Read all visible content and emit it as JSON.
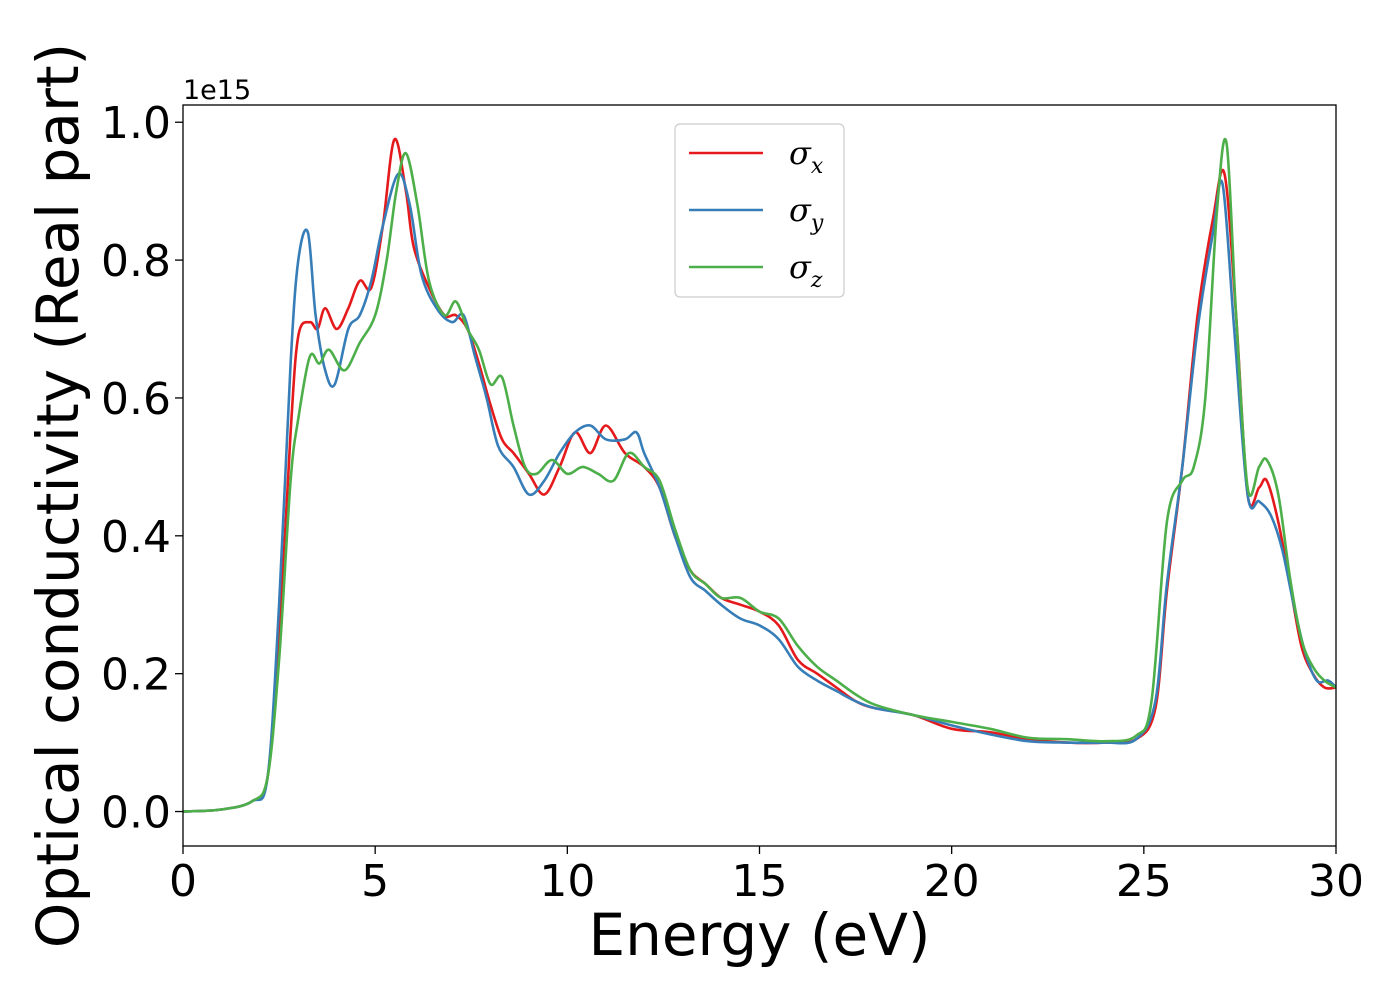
{
  "chart_data": {
    "type": "line",
    "xlabel": "Energy (eV)",
    "ylabel": "Optical conductivity (Real part)",
    "y_offset_label": "1e15",
    "xlim": [
      0,
      30
    ],
    "ylim": [
      -0.05,
      1.025
    ],
    "xticks": [
      0,
      5,
      10,
      15,
      20,
      25,
      30
    ],
    "xtick_labels": [
      "0",
      "5",
      "10",
      "15",
      "20",
      "25",
      "30"
    ],
    "yticks": [
      0.0,
      0.2,
      0.4,
      0.6,
      0.8,
      1.0
    ],
    "ytick_labels": [
      "0.0",
      "0.2",
      "0.4",
      "0.6",
      "0.8",
      "1.0"
    ],
    "grid": false,
    "legend_position": "top-center",
    "series": [
      {
        "name": "σx",
        "symbol": "σ",
        "subscript": "x",
        "color": "#e41a1c",
        "points": [
          [
            0,
            0.0
          ],
          [
            1.0,
            0.003
          ],
          [
            1.8,
            0.015
          ],
          [
            2.2,
            0.05
          ],
          [
            2.5,
            0.25
          ],
          [
            2.8,
            0.55
          ],
          [
            3.0,
            0.69
          ],
          [
            3.3,
            0.71
          ],
          [
            3.5,
            0.7
          ],
          [
            3.7,
            0.73
          ],
          [
            4.0,
            0.7
          ],
          [
            4.3,
            0.73
          ],
          [
            4.6,
            0.77
          ],
          [
            4.9,
            0.76
          ],
          [
            5.2,
            0.85
          ],
          [
            5.5,
            0.975
          ],
          [
            5.8,
            0.9
          ],
          [
            6.0,
            0.82
          ],
          [
            6.4,
            0.76
          ],
          [
            6.8,
            0.72
          ],
          [
            7.1,
            0.72
          ],
          [
            7.4,
            0.7
          ],
          [
            7.7,
            0.65
          ],
          [
            8.0,
            0.59
          ],
          [
            8.3,
            0.54
          ],
          [
            8.6,
            0.52
          ],
          [
            9.0,
            0.49
          ],
          [
            9.4,
            0.46
          ],
          [
            9.8,
            0.5
          ],
          [
            10.2,
            0.55
          ],
          [
            10.6,
            0.52
          ],
          [
            11.0,
            0.56
          ],
          [
            11.5,
            0.52
          ],
          [
            12.0,
            0.5
          ],
          [
            12.4,
            0.47
          ],
          [
            12.8,
            0.4
          ],
          [
            13.2,
            0.35
          ],
          [
            13.6,
            0.33
          ],
          [
            14.0,
            0.31
          ],
          [
            14.5,
            0.3
          ],
          [
            15.0,
            0.29
          ],
          [
            15.5,
            0.27
          ],
          [
            16.0,
            0.22
          ],
          [
            16.5,
            0.2
          ],
          [
            17.0,
            0.18
          ],
          [
            17.5,
            0.16
          ],
          [
            18.0,
            0.15
          ],
          [
            19.0,
            0.14
          ],
          [
            20.0,
            0.12
          ],
          [
            21.0,
            0.115
          ],
          [
            22.0,
            0.105
          ],
          [
            23.0,
            0.1
          ],
          [
            24.0,
            0.1
          ],
          [
            24.8,
            0.105
          ],
          [
            25.3,
            0.15
          ],
          [
            25.6,
            0.32
          ],
          [
            26.0,
            0.5
          ],
          [
            26.4,
            0.72
          ],
          [
            26.8,
            0.86
          ],
          [
            27.1,
            0.925
          ],
          [
            27.4,
            0.72
          ],
          [
            27.7,
            0.46
          ],
          [
            28.0,
            0.47
          ],
          [
            28.2,
            0.48
          ],
          [
            28.5,
            0.42
          ],
          [
            28.8,
            0.33
          ],
          [
            29.1,
            0.24
          ],
          [
            29.4,
            0.2
          ],
          [
            29.7,
            0.18
          ],
          [
            30.0,
            0.18
          ]
        ]
      },
      {
        "name": "σy",
        "symbol": "σ",
        "subscript": "y",
        "color": "#377eb8",
        "points": [
          [
            0,
            0.0
          ],
          [
            1.0,
            0.003
          ],
          [
            1.8,
            0.015
          ],
          [
            2.2,
            0.05
          ],
          [
            2.5,
            0.3
          ],
          [
            2.8,
            0.65
          ],
          [
            3.0,
            0.8
          ],
          [
            3.25,
            0.84
          ],
          [
            3.45,
            0.72
          ],
          [
            3.7,
            0.64
          ],
          [
            3.95,
            0.62
          ],
          [
            4.3,
            0.7
          ],
          [
            4.6,
            0.72
          ],
          [
            4.9,
            0.77
          ],
          [
            5.2,
            0.85
          ],
          [
            5.6,
            0.925
          ],
          [
            5.9,
            0.88
          ],
          [
            6.2,
            0.78
          ],
          [
            6.6,
            0.73
          ],
          [
            7.0,
            0.71
          ],
          [
            7.3,
            0.72
          ],
          [
            7.6,
            0.66
          ],
          [
            7.9,
            0.6
          ],
          [
            8.2,
            0.53
          ],
          [
            8.6,
            0.5
          ],
          [
            9.0,
            0.46
          ],
          [
            9.4,
            0.48
          ],
          [
            9.8,
            0.52
          ],
          [
            10.2,
            0.55
          ],
          [
            10.6,
            0.56
          ],
          [
            11.0,
            0.54
          ],
          [
            11.5,
            0.54
          ],
          [
            11.8,
            0.55
          ],
          [
            12.0,
            0.52
          ],
          [
            12.4,
            0.47
          ],
          [
            12.8,
            0.4
          ],
          [
            13.2,
            0.34
          ],
          [
            13.6,
            0.32
          ],
          [
            14.0,
            0.3
          ],
          [
            14.5,
            0.28
          ],
          [
            15.0,
            0.27
          ],
          [
            15.5,
            0.25
          ],
          [
            16.0,
            0.21
          ],
          [
            16.5,
            0.19
          ],
          [
            17.0,
            0.175
          ],
          [
            17.5,
            0.16
          ],
          [
            18.0,
            0.15
          ],
          [
            19.0,
            0.14
          ],
          [
            20.0,
            0.125
          ],
          [
            21.0,
            0.112
          ],
          [
            22.0,
            0.102
          ],
          [
            23.0,
            0.1
          ],
          [
            24.0,
            0.1
          ],
          [
            24.8,
            0.105
          ],
          [
            25.3,
            0.16
          ],
          [
            25.6,
            0.33
          ],
          [
            26.0,
            0.5
          ],
          [
            26.4,
            0.7
          ],
          [
            26.8,
            0.84
          ],
          [
            27.05,
            0.91
          ],
          [
            27.35,
            0.7
          ],
          [
            27.7,
            0.46
          ],
          [
            28.0,
            0.45
          ],
          [
            28.3,
            0.43
          ],
          [
            28.6,
            0.38
          ],
          [
            28.9,
            0.3
          ],
          [
            29.2,
            0.23
          ],
          [
            29.5,
            0.19
          ],
          [
            29.8,
            0.19
          ],
          [
            30.0,
            0.18
          ]
        ]
      },
      {
        "name": "σz",
        "symbol": "σ",
        "subscript": "z",
        "color": "#4daf4a",
        "points": [
          [
            0,
            0.0
          ],
          [
            1.0,
            0.003
          ],
          [
            1.8,
            0.015
          ],
          [
            2.2,
            0.05
          ],
          [
            2.5,
            0.22
          ],
          [
            2.8,
            0.48
          ],
          [
            3.0,
            0.57
          ],
          [
            3.3,
            0.66
          ],
          [
            3.55,
            0.65
          ],
          [
            3.8,
            0.67
          ],
          [
            4.2,
            0.64
          ],
          [
            4.6,
            0.68
          ],
          [
            5.0,
            0.72
          ],
          [
            5.3,
            0.8
          ],
          [
            5.55,
            0.9
          ],
          [
            5.8,
            0.955
          ],
          [
            6.1,
            0.88
          ],
          [
            6.4,
            0.77
          ],
          [
            6.8,
            0.72
          ],
          [
            7.1,
            0.74
          ],
          [
            7.4,
            0.7
          ],
          [
            7.7,
            0.67
          ],
          [
            8.0,
            0.62
          ],
          [
            8.3,
            0.63
          ],
          [
            8.6,
            0.56
          ],
          [
            8.9,
            0.5
          ],
          [
            9.2,
            0.49
          ],
          [
            9.6,
            0.51
          ],
          [
            10.0,
            0.49
          ],
          [
            10.4,
            0.5
          ],
          [
            10.8,
            0.49
          ],
          [
            11.2,
            0.48
          ],
          [
            11.6,
            0.52
          ],
          [
            12.0,
            0.5
          ],
          [
            12.4,
            0.48
          ],
          [
            12.8,
            0.41
          ],
          [
            13.2,
            0.35
          ],
          [
            13.6,
            0.33
          ],
          [
            14.0,
            0.31
          ],
          [
            14.5,
            0.31
          ],
          [
            15.0,
            0.29
          ],
          [
            15.5,
            0.28
          ],
          [
            16.0,
            0.24
          ],
          [
            16.5,
            0.21
          ],
          [
            17.0,
            0.19
          ],
          [
            17.5,
            0.17
          ],
          [
            18.0,
            0.155
          ],
          [
            19.0,
            0.14
          ],
          [
            20.0,
            0.13
          ],
          [
            21.0,
            0.12
          ],
          [
            22.0,
            0.107
          ],
          [
            23.0,
            0.105
          ],
          [
            24.0,
            0.102
          ],
          [
            24.8,
            0.11
          ],
          [
            25.2,
            0.16
          ],
          [
            25.6,
            0.42
          ],
          [
            26.0,
            0.48
          ],
          [
            26.3,
            0.5
          ],
          [
            26.6,
            0.6
          ],
          [
            26.9,
            0.87
          ],
          [
            27.15,
            0.97
          ],
          [
            27.4,
            0.72
          ],
          [
            27.7,
            0.47
          ],
          [
            28.0,
            0.5
          ],
          [
            28.2,
            0.51
          ],
          [
            28.5,
            0.46
          ],
          [
            28.8,
            0.34
          ],
          [
            29.1,
            0.25
          ],
          [
            29.4,
            0.21
          ],
          [
            29.7,
            0.19
          ],
          [
            30.0,
            0.18
          ]
        ]
      }
    ]
  }
}
